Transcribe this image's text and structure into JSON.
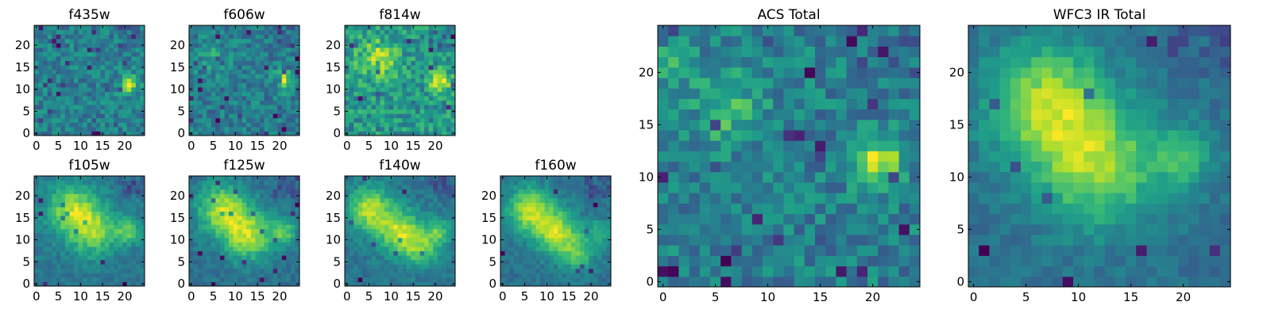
{
  "figure": {
    "colormap": "viridis",
    "frame_color": "#000000",
    "background": "#ffffff"
  },
  "chart_data": [
    {
      "type": "heatmap",
      "title": "f435w",
      "xlabel": "",
      "ylabel": "",
      "xlim": [
        0,
        24
      ],
      "ylim": [
        0,
        24
      ],
      "grid": false,
      "xticks": [
        "0",
        "5",
        "10",
        "15",
        "20"
      ],
      "yticks": [
        "0",
        "5",
        "10",
        "15",
        "20"
      ],
      "texture": "noisy",
      "peaks": [
        [
          21,
          11,
          1.5,
          0.55
        ]
      ]
    },
    {
      "type": "heatmap",
      "title": "f606w",
      "xlabel": "",
      "ylabel": "",
      "xlim": [
        0,
        24
      ],
      "ylim": [
        0,
        24
      ],
      "grid": false,
      "xticks": [
        "0",
        "5",
        "10",
        "15",
        "20"
      ],
      "yticks": [
        "0",
        "5",
        "10",
        "15",
        "20"
      ],
      "texture": "noisy",
      "peaks": [
        [
          21,
          12,
          1.6,
          0.55
        ],
        [
          5,
          17,
          2.5,
          0.2
        ]
      ]
    },
    {
      "type": "heatmap",
      "title": "f814w",
      "xlabel": "",
      "ylabel": "",
      "xlim": [
        0,
        24
      ],
      "ylim": [
        0,
        24
      ],
      "grid": false,
      "xticks": [
        "0",
        "5",
        "10",
        "15",
        "20"
      ],
      "yticks": [
        "0",
        "5",
        "10",
        "15",
        "20"
      ],
      "texture": "noisy",
      "peaks": [
        [
          21,
          12,
          1.6,
          0.5
        ],
        [
          7,
          17,
          3.0,
          0.35
        ]
      ]
    },
    {
      "type": "heatmap",
      "title": "f105w",
      "xlabel": "",
      "ylabel": "",
      "xlim": [
        0,
        24
      ],
      "ylim": [
        0,
        24
      ],
      "grid": false,
      "xticks": [
        "0",
        "5",
        "10",
        "15",
        "20"
      ],
      "yticks": [
        "0",
        "5",
        "10",
        "15",
        "20"
      ],
      "texture": "smooth",
      "peaks": [
        [
          8,
          17,
          4.0,
          0.45
        ],
        [
          13,
          12,
          4.0,
          0.4
        ],
        [
          21,
          12,
          2.0,
          0.35
        ]
      ]
    },
    {
      "type": "heatmap",
      "title": "f125w",
      "xlabel": "",
      "ylabel": "",
      "xlim": [
        0,
        24
      ],
      "ylim": [
        0,
        24
      ],
      "grid": false,
      "xticks": [
        "0",
        "5",
        "10",
        "15",
        "20"
      ],
      "yticks": [
        "0",
        "5",
        "10",
        "15",
        "20"
      ],
      "texture": "smooth",
      "peaks": [
        [
          7,
          17,
          4.0,
          0.5
        ],
        [
          13,
          11,
          4.0,
          0.5
        ],
        [
          21,
          12,
          2.0,
          0.35
        ]
      ]
    },
    {
      "type": "heatmap",
      "title": "f140w",
      "xlabel": "",
      "ylabel": "",
      "xlim": [
        0,
        24
      ],
      "ylim": [
        0,
        24
      ],
      "grid": false,
      "xticks": [
        "0",
        "5",
        "10",
        "15",
        "20"
      ],
      "yticks": [
        "0",
        "5",
        "10",
        "15",
        "20"
      ],
      "texture": "smooth",
      "peaks": [
        [
          5,
          17,
          3.5,
          0.5
        ],
        [
          12,
          12,
          3.5,
          0.5
        ],
        [
          17,
          8,
          3.0,
          0.35
        ],
        [
          21,
          12,
          2.0,
          0.3
        ]
      ]
    },
    {
      "type": "heatmap",
      "title": "f160w",
      "xlabel": "",
      "ylabel": "",
      "xlim": [
        0,
        24
      ],
      "ylim": [
        0,
        24
      ],
      "grid": false,
      "xticks": [
        "0",
        "5",
        "10",
        "15",
        "20"
      ],
      "yticks": [
        "0",
        "5",
        "10",
        "15",
        "20"
      ],
      "texture": "smooth",
      "peaks": [
        [
          6,
          17,
          3.5,
          0.55
        ],
        [
          12,
          12,
          3.5,
          0.55
        ],
        [
          17,
          7,
          3.0,
          0.35
        ],
        [
          22,
          12,
          2.0,
          0.25
        ]
      ]
    },
    {
      "type": "heatmap",
      "title": "ACS Total",
      "xlabel": "",
      "ylabel": "",
      "xlim": [
        0,
        24
      ],
      "ylim": [
        0,
        24
      ],
      "grid": false,
      "xticks": [
        "0",
        "5",
        "10",
        "15",
        "20"
      ],
      "yticks": [
        "0",
        "5",
        "10",
        "15",
        "20"
      ],
      "texture": "noisy",
      "peaks": [
        [
          20.5,
          11.5,
          1.6,
          0.6
        ],
        [
          6,
          16.5,
          2.5,
          0.3
        ],
        [
          1,
          21,
          1.2,
          0.25
        ]
      ]
    },
    {
      "type": "heatmap",
      "title": "WFC3 IR Total",
      "xlabel": "",
      "ylabel": "",
      "xlim": [
        0,
        24
      ],
      "ylim": [
        0,
        24
      ],
      "grid": false,
      "xticks": [
        "0",
        "5",
        "10",
        "15",
        "20"
      ],
      "yticks": [
        "0",
        "5",
        "10",
        "15",
        "20"
      ],
      "texture": "smooth",
      "peaks": [
        [
          7,
          17,
          4.0,
          0.55
        ],
        [
          12,
          11,
          4.0,
          0.5
        ],
        [
          20,
          12,
          2.0,
          0.35
        ]
      ]
    }
  ]
}
